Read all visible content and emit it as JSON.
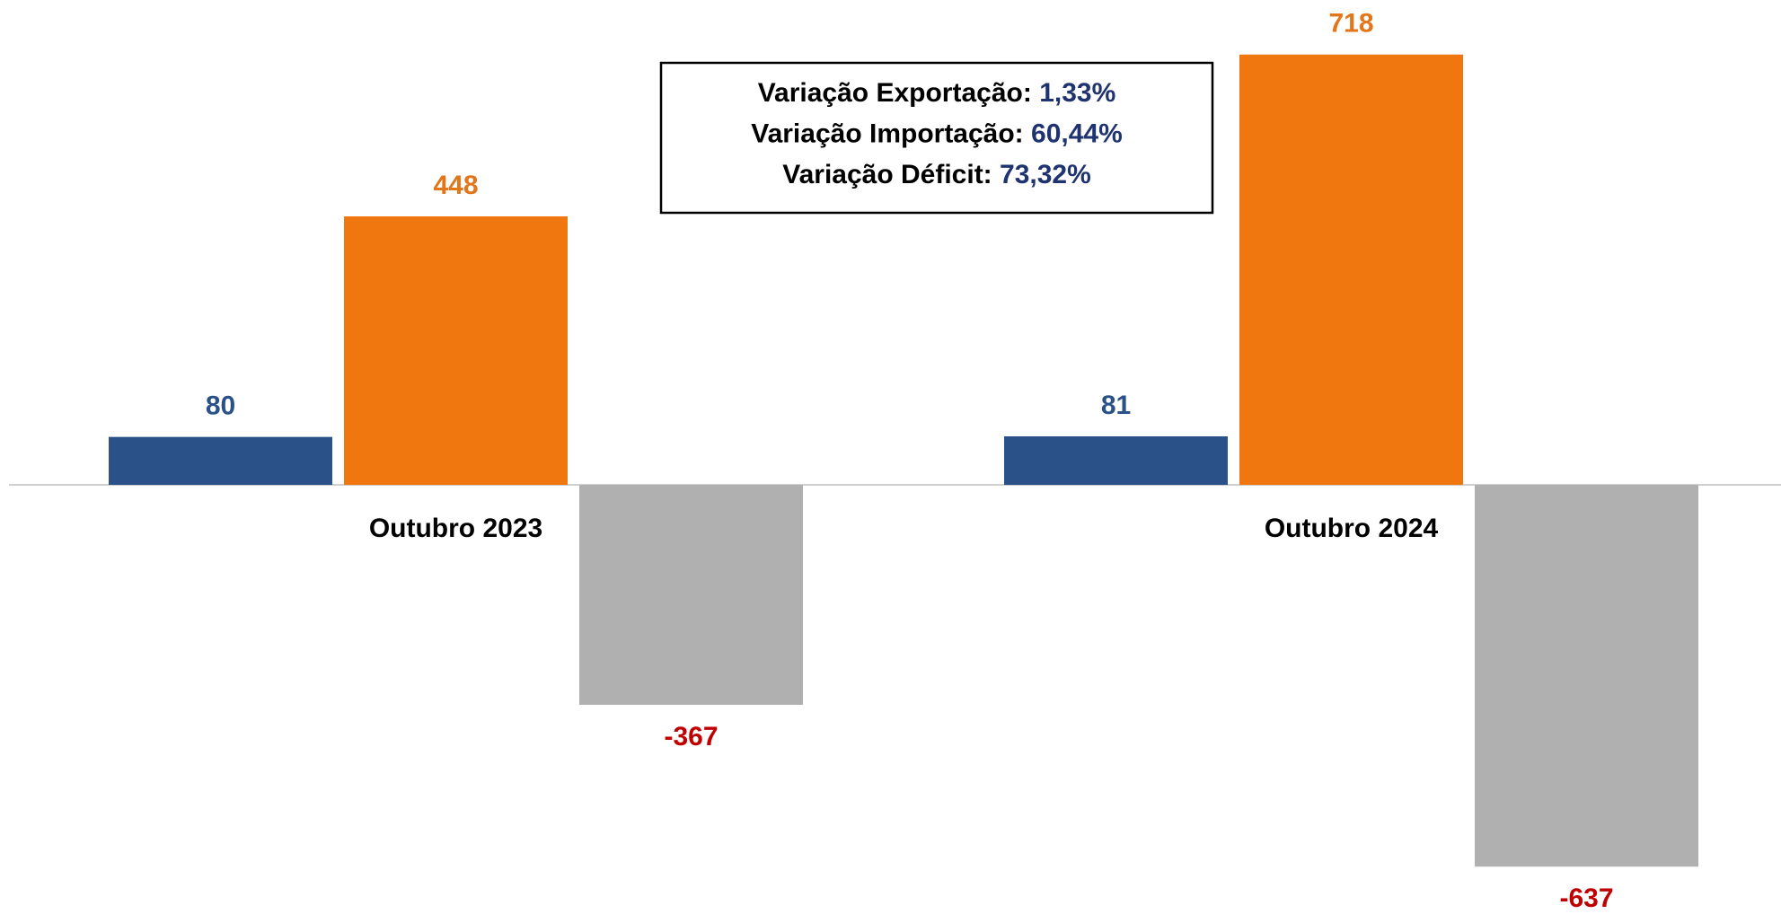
{
  "chart_data": {
    "type": "bar",
    "categories": [
      "Outubro 2023",
      "Outubro 2024"
    ],
    "series": [
      {
        "color": "#2a5289",
        "label_color": "#2b5288",
        "values": [
          80,
          81
        ]
      },
      {
        "color": "#f07610",
        "label_color": "#e2761b",
        "values": [
          448,
          718
        ]
      },
      {
        "color": "#b0b0b0",
        "label_color": "#c00000",
        "values": [
          -367,
          -637
        ]
      }
    ],
    "ylim": [
      -716,
      809
    ],
    "annotations": [
      {
        "label": "Variação Exportação:",
        "value": "1,33%"
      },
      {
        "label": "Variação Importação:",
        "value": "60,44%"
      },
      {
        "label": "Variação Déficit:",
        "value": "73,32%"
      }
    ],
    "annotation_value_color": "#1f3370"
  }
}
